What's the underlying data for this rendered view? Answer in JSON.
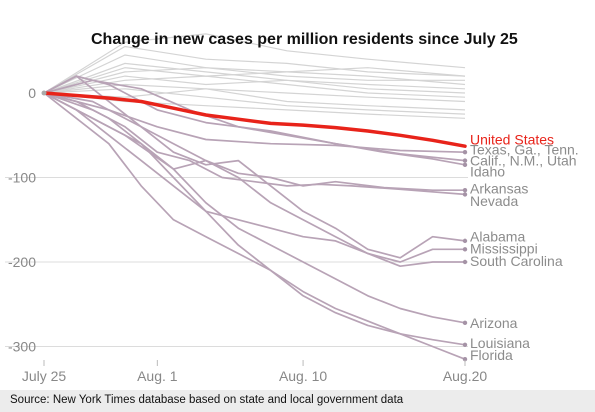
{
  "chart_data": {
    "type": "line",
    "title": "Change in new cases per million residents since July 25",
    "xlabel": "",
    "ylabel": "",
    "x_ticks": [
      "July 25",
      "Aug. 1",
      "Aug. 10",
      "Aug.20"
    ],
    "x_tick_days": [
      0,
      7,
      16,
      26
    ],
    "xlim": [
      0,
      26
    ],
    "y_ticks": [
      0,
      -100,
      -200,
      -300
    ],
    "ylim": [
      -330,
      75
    ],
    "grid": "horizontal",
    "highlight_series": {
      "name": "United States",
      "color": "#e8231a",
      "x": [
        0,
        2,
        4,
        6,
        8,
        10,
        12,
        14,
        16,
        18,
        20,
        22,
        24,
        26
      ],
      "values": [
        0,
        -3,
        -6,
        -10,
        -18,
        -26,
        -31,
        -36,
        -38,
        -41,
        -45,
        -50,
        -56,
        -63
      ]
    },
    "series": [
      {
        "name": "Texas, Ga., Tenn.",
        "x": [
          0,
          2,
          4,
          7,
          10,
          14,
          18,
          22,
          26
        ],
        "values": [
          0,
          -10,
          -20,
          -40,
          -55,
          -60,
          -62,
          -68,
          -70
        ]
      },
      {
        "name": "Calif., N.M., Utah",
        "x": [
          0,
          2,
          4,
          7,
          10,
          14,
          18,
          22,
          26
        ],
        "values": [
          0,
          20,
          10,
          -20,
          -35,
          -45,
          -60,
          -72,
          -80
        ]
      },
      {
        "name": "Idaho",
        "x": [
          0,
          3,
          6,
          9,
          12,
          15,
          18,
          21,
          24,
          26
        ],
        "values": [
          0,
          15,
          5,
          -20,
          -40,
          -50,
          -60,
          -70,
          -78,
          -85
        ]
      },
      {
        "name": "Arkansas",
        "x": [
          0,
          3,
          5,
          8,
          10,
          12,
          14,
          16,
          18,
          21,
          24,
          26
        ],
        "values": [
          0,
          -30,
          -50,
          -90,
          -80,
          -95,
          -100,
          -110,
          -105,
          -112,
          -115,
          -115
        ]
      },
      {
        "name": "Nevada",
        "x": [
          0,
          3,
          5,
          7,
          9,
          11,
          13,
          15,
          17,
          19,
          22,
          26
        ],
        "values": [
          0,
          -20,
          -40,
          -70,
          -80,
          -100,
          -105,
          -110,
          -108,
          -110,
          -114,
          -120
        ]
      },
      {
        "name": "Alabama",
        "x": [
          0,
          3,
          6,
          8,
          10,
          12,
          14,
          16,
          18,
          20,
          22,
          24,
          26
        ],
        "values": [
          0,
          -10,
          -40,
          -70,
          -85,
          -80,
          -110,
          -140,
          -160,
          -185,
          -195,
          -170,
          -175
        ]
      },
      {
        "name": "Mississippi",
        "x": [
          0,
          2,
          4,
          6,
          8,
          10,
          12,
          14,
          16,
          18,
          20,
          22,
          24,
          26
        ],
        "values": [
          0,
          20,
          -10,
          -40,
          -60,
          -80,
          -100,
          -130,
          -150,
          -170,
          -190,
          -200,
          -185,
          -185
        ]
      },
      {
        "name": "South Carolina",
        "x": [
          0,
          2,
          4,
          6,
          8,
          10,
          12,
          14,
          16,
          18,
          20,
          22,
          24,
          26
        ],
        "values": [
          0,
          -20,
          -50,
          -80,
          -110,
          -140,
          -150,
          -160,
          -170,
          -175,
          -190,
          -205,
          -200,
          -200
        ]
      },
      {
        "name": "Arizona",
        "x": [
          0,
          2,
          4,
          6,
          8,
          10,
          12,
          14,
          16,
          18,
          20,
          22,
          24,
          26
        ],
        "values": [
          0,
          -20,
          -40,
          -60,
          -90,
          -130,
          -160,
          -180,
          -200,
          -220,
          -240,
          -255,
          -265,
          -272
        ]
      },
      {
        "name": "Louisiana",
        "x": [
          0,
          2,
          4,
          6,
          8,
          10,
          12,
          14,
          16,
          18,
          20,
          22,
          24,
          26
        ],
        "values": [
          0,
          -10,
          -30,
          -60,
          -100,
          -140,
          -180,
          -210,
          -240,
          -260,
          -275,
          -285,
          -292,
          -298
        ]
      },
      {
        "name": "Florida",
        "x": [
          0,
          2,
          4,
          6,
          8,
          10,
          12,
          14,
          16,
          18,
          20,
          22,
          24,
          26
        ],
        "values": [
          0,
          -30,
          -60,
          -110,
          -150,
          -170,
          -190,
          -210,
          -235,
          -255,
          -270,
          -285,
          -300,
          -315
        ]
      }
    ],
    "background_series": [
      {
        "x": [
          0,
          5,
          10,
          15,
          20,
          26
        ],
        "values": [
          0,
          55,
          40,
          35,
          25,
          20
        ]
      },
      {
        "x": [
          0,
          5,
          10,
          15,
          20,
          26
        ],
        "values": [
          0,
          35,
          25,
          15,
          10,
          5
        ]
      },
      {
        "x": [
          0,
          5,
          10,
          15,
          20,
          26
        ],
        "values": [
          0,
          60,
          70,
          50,
          40,
          30
        ]
      },
      {
        "x": [
          0,
          5,
          10,
          15,
          20,
          26
        ],
        "values": [
          0,
          20,
          10,
          15,
          5,
          0
        ]
      },
      {
        "x": [
          0,
          5,
          10,
          15,
          20,
          26
        ],
        "values": [
          0,
          10,
          5,
          0,
          -5,
          -10
        ]
      },
      {
        "x": [
          0,
          5,
          10,
          15,
          20,
          26
        ],
        "values": [
          0,
          -5,
          5,
          -10,
          -15,
          -20
        ]
      },
      {
        "x": [
          0,
          5,
          10,
          15,
          20,
          26
        ],
        "values": [
          0,
          25,
          30,
          20,
          15,
          15
        ]
      },
      {
        "x": [
          0,
          5,
          10,
          15,
          20,
          26
        ],
        "values": [
          0,
          45,
          30,
          25,
          20,
          10
        ]
      },
      {
        "x": [
          0,
          5,
          10,
          15,
          20,
          26
        ],
        "values": [
          0,
          5,
          -5,
          -15,
          -20,
          -25
        ]
      },
      {
        "x": [
          0,
          5,
          10,
          15,
          20,
          26
        ],
        "values": [
          0,
          15,
          20,
          10,
          0,
          -5
        ]
      },
      {
        "x": [
          0,
          5,
          10,
          15,
          20,
          26
        ],
        "values": [
          0,
          30,
          20,
          25,
          30,
          20
        ]
      },
      {
        "x": [
          0,
          5,
          10,
          15,
          20,
          26
        ],
        "values": [
          0,
          -10,
          -15,
          -20,
          -25,
          -30
        ]
      }
    ],
    "labels": [
      {
        "text": "United States",
        "y": -55,
        "class": "us"
      },
      {
        "text": "Texas, Ga., Tenn.",
        "y": -67
      },
      {
        "text": "Calif., N.M., Utah",
        "y": -80
      },
      {
        "text": "Idaho",
        "y": -93
      },
      {
        "text": "Arkansas",
        "y": -113
      },
      {
        "text": "Nevada",
        "y": -128
      },
      {
        "text": "Alabama",
        "y": -170
      },
      {
        "text": "Mississippi",
        "y": -184
      },
      {
        "text": "South Carolina",
        "y": -199
      },
      {
        "text": "Arizona",
        "y": -272
      },
      {
        "text": "Louisiana",
        "y": -296
      },
      {
        "text": "Florida",
        "y": -310
      }
    ]
  },
  "source_text": "Source: New York Times database based on state and local government data"
}
